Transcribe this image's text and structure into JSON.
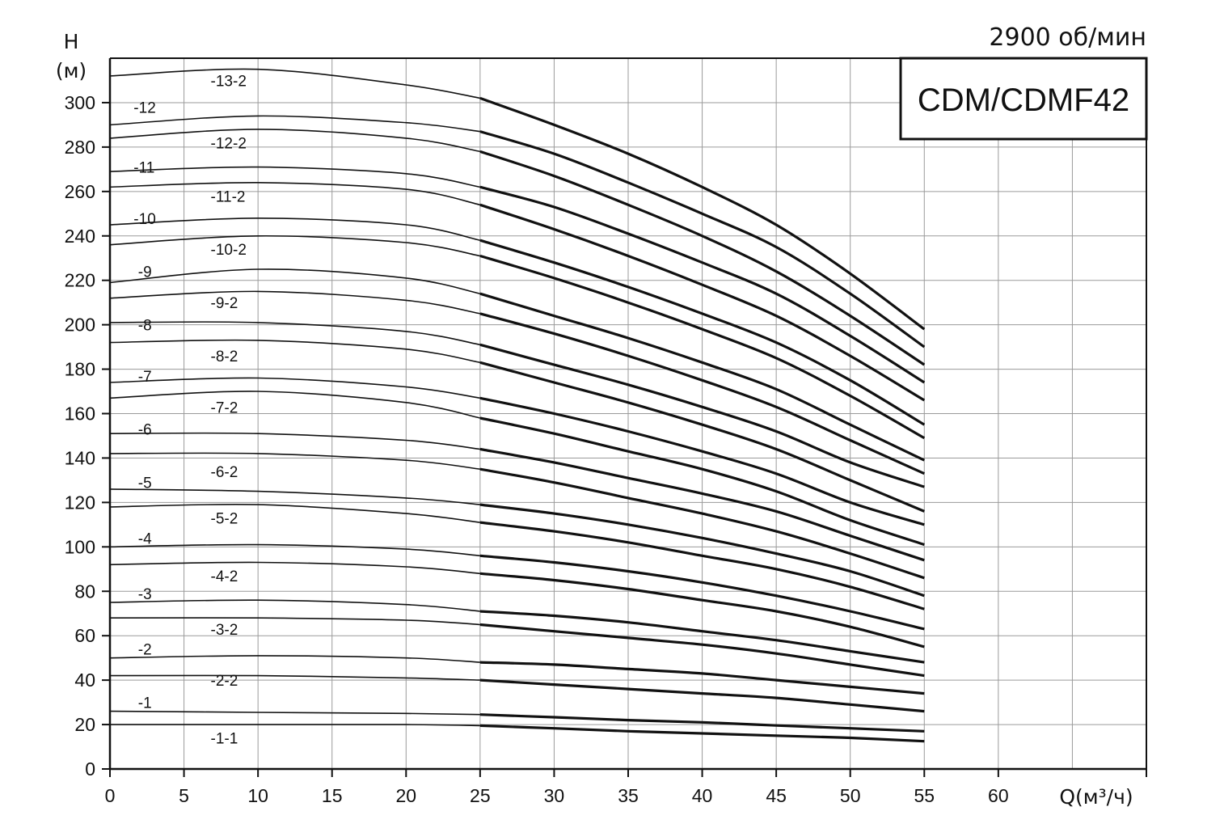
{
  "chart_data": {
    "type": "line",
    "title": "CDM/CDMF42",
    "subtitle": "2900 об/мин",
    "xlabel": "Q(м³/ч)",
    "ylabel_line1": "H",
    "ylabel_line2": "(м)",
    "xlim": [
      0,
      70
    ],
    "ylim": [
      0,
      320
    ],
    "x_ticks": [
      0,
      5,
      10,
      15,
      20,
      25,
      30,
      35,
      40,
      45,
      50,
      55,
      60
    ],
    "y_ticks": [
      0,
      20,
      40,
      60,
      80,
      100,
      120,
      140,
      160,
      180,
      200,
      220,
      240,
      260,
      280,
      300
    ],
    "grid": true,
    "series": [
      {
        "name": "-13-2",
        "x": [
          0,
          10,
          20,
          25,
          30,
          35,
          40,
          45,
          50,
          55
        ],
        "y": [
          312,
          315,
          308,
          302,
          290,
          277,
          262,
          245,
          223,
          198
        ]
      },
      {
        "name": "-12",
        "x": [
          0,
          10,
          20,
          25,
          30,
          35,
          40,
          45,
          50,
          55
        ],
        "y": [
          290,
          294,
          291,
          287,
          277,
          264,
          250,
          235,
          214,
          190
        ]
      },
      {
        "name": "-12-2",
        "x": [
          0,
          10,
          20,
          25,
          30,
          35,
          40,
          45,
          50,
          55
        ],
        "y": [
          284,
          288,
          284,
          278,
          267,
          254,
          240,
          224,
          204,
          182
        ]
      },
      {
        "name": "-11",
        "x": [
          0,
          10,
          20,
          25,
          30,
          35,
          40,
          45,
          50,
          55
        ],
        "y": [
          269,
          271,
          268,
          262,
          253,
          241,
          228,
          214,
          195,
          174
        ]
      },
      {
        "name": "-11-2",
        "x": [
          0,
          10,
          20,
          25,
          30,
          35,
          40,
          45,
          50,
          55
        ],
        "y": [
          262,
          264,
          261,
          254,
          243,
          231,
          218,
          204,
          186,
          166
        ]
      },
      {
        "name": "-10",
        "x": [
          0,
          10,
          20,
          25,
          30,
          35,
          40,
          45,
          50,
          55
        ],
        "y": [
          245,
          248,
          245,
          238,
          228,
          217,
          205,
          192,
          175,
          155
        ]
      },
      {
        "name": "-10-2",
        "x": [
          0,
          10,
          20,
          25,
          30,
          35,
          40,
          45,
          50,
          55
        ],
        "y": [
          236,
          240,
          237,
          231,
          221,
          210,
          198,
          185,
          168,
          149
        ]
      },
      {
        "name": "-9",
        "x": [
          0,
          10,
          20,
          25,
          30,
          35,
          40,
          45,
          50,
          55
        ],
        "y": [
          219,
          225,
          221,
          214,
          204,
          194,
          183,
          171,
          155,
          139
        ]
      },
      {
        "name": "-9-2",
        "x": [
          0,
          10,
          20,
          25,
          30,
          35,
          40,
          45,
          50,
          55
        ],
        "y": [
          212,
          215,
          211,
          205,
          196,
          186,
          175,
          163,
          148,
          133
        ]
      },
      {
        "name": "-8",
        "x": [
          0,
          10,
          20,
          25,
          30,
          35,
          40,
          45,
          50,
          55
        ],
        "y": [
          201,
          201,
          197,
          191,
          182,
          173,
          163,
          152,
          138,
          127
        ]
      },
      {
        "name": "-8-2",
        "x": [
          0,
          10,
          20,
          25,
          30,
          35,
          40,
          45,
          50,
          55
        ],
        "y": [
          192,
          193,
          189,
          183,
          174,
          165,
          155,
          144,
          130,
          116
        ]
      },
      {
        "name": "-7",
        "x": [
          0,
          10,
          20,
          25,
          30,
          35,
          40,
          45,
          50,
          55
        ],
        "y": [
          174,
          176,
          172,
          167,
          160,
          152,
          143,
          133,
          120,
          110
        ]
      },
      {
        "name": "-7-2",
        "x": [
          0,
          10,
          20,
          25,
          30,
          35,
          40,
          45,
          50,
          55
        ],
        "y": [
          167,
          170,
          165,
          158,
          151,
          143,
          135,
          125,
          112,
          101
        ]
      },
      {
        "name": "-6",
        "x": [
          0,
          10,
          20,
          25,
          30,
          35,
          40,
          45,
          50,
          55
        ],
        "y": [
          151,
          151,
          148,
          144,
          138,
          131,
          124,
          116,
          105,
          94
        ]
      },
      {
        "name": "-6-2",
        "x": [
          0,
          10,
          20,
          25,
          30,
          35,
          40,
          45,
          50,
          55
        ],
        "y": [
          142,
          142,
          139,
          135,
          129,
          122,
          115,
          107,
          97,
          86
        ]
      },
      {
        "name": "-5",
        "x": [
          0,
          10,
          20,
          25,
          30,
          35,
          40,
          45,
          50,
          55
        ],
        "y": [
          126,
          125,
          122,
          119,
          115,
          110,
          104,
          97,
          89,
          78
        ]
      },
      {
        "name": "-5-2",
        "x": [
          0,
          10,
          20,
          25,
          30,
          35,
          40,
          45,
          50,
          55
        ],
        "y": [
          118,
          119,
          115,
          111,
          107,
          102,
          96,
          90,
          82,
          72
        ]
      },
      {
        "name": "-4",
        "x": [
          0,
          10,
          20,
          25,
          30,
          35,
          40,
          45,
          50,
          55
        ],
        "y": [
          100,
          101,
          99,
          96,
          93,
          89,
          84,
          78,
          71,
          63
        ]
      },
      {
        "name": "-4-2",
        "x": [
          0,
          10,
          20,
          25,
          30,
          35,
          40,
          45,
          50,
          55
        ],
        "y": [
          92,
          93,
          91,
          88,
          85,
          81,
          76,
          71,
          64,
          55
        ]
      },
      {
        "name": "-3",
        "x": [
          0,
          10,
          20,
          25,
          30,
          35,
          40,
          45,
          50,
          55
        ],
        "y": [
          75,
          76,
          74,
          71,
          69,
          66,
          62,
          58,
          53,
          48
        ]
      },
      {
        "name": "-3-2",
        "x": [
          0,
          10,
          20,
          25,
          30,
          35,
          40,
          45,
          50,
          55
        ],
        "y": [
          68,
          68,
          67,
          65,
          62,
          59,
          56,
          52,
          47,
          42
        ]
      },
      {
        "name": "-2",
        "x": [
          0,
          10,
          20,
          25,
          30,
          35,
          40,
          45,
          50,
          55
        ],
        "y": [
          50,
          51,
          50,
          48,
          47,
          45,
          43,
          40,
          37,
          34
        ]
      },
      {
        "name": "-2-2",
        "x": [
          0,
          10,
          20,
          25,
          30,
          35,
          40,
          45,
          50,
          55
        ],
        "y": [
          42,
          42,
          41,
          40,
          38,
          36,
          34,
          32,
          29,
          26
        ]
      },
      {
        "name": "-1",
        "x": [
          0,
          10,
          20,
          25,
          30,
          35,
          40,
          45,
          50,
          55
        ],
        "y": [
          26,
          25.5,
          25,
          24.5,
          23.3,
          22,
          21,
          19.6,
          18.3,
          17
        ]
      },
      {
        "name": "-1-1",
        "x": [
          0,
          10,
          20,
          25,
          30,
          35,
          40,
          45,
          50,
          55
        ],
        "y": [
          20,
          20,
          20,
          19.5,
          18.3,
          17,
          16,
          15,
          14,
          12.5
        ]
      }
    ],
    "curve_labels": [
      {
        "text": "-13-2",
        "x": 6.8,
        "y": 310
      },
      {
        "text": "-12",
        "x": 1.6,
        "y": 298
      },
      {
        "text": "-12-2",
        "x": 6.8,
        "y": 282
      },
      {
        "text": "-11",
        "x": 1.6,
        "y": 271
      },
      {
        "text": "-11-2",
        "x": 6.8,
        "y": 258
      },
      {
        "text": "-10",
        "x": 1.6,
        "y": 248
      },
      {
        "text": "-10-2",
        "x": 6.8,
        "y": 234
      },
      {
        "text": "-9",
        "x": 1.9,
        "y": 224
      },
      {
        "text": "-9-2",
        "x": 6.8,
        "y": 210
      },
      {
        "text": "-8",
        "x": 1.9,
        "y": 200
      },
      {
        "text": "-8-2",
        "x": 6.8,
        "y": 186
      },
      {
        "text": "-7",
        "x": 1.9,
        "y": 177
      },
      {
        "text": "-7-2",
        "x": 6.8,
        "y": 163
      },
      {
        "text": "-6",
        "x": 1.9,
        "y": 153
      },
      {
        "text": "-6-2",
        "x": 6.8,
        "y": 134
      },
      {
        "text": "-5",
        "x": 1.9,
        "y": 129
      },
      {
        "text": "-5-2",
        "x": 6.8,
        "y": 113
      },
      {
        "text": "-4",
        "x": 1.9,
        "y": 104
      },
      {
        "text": "-4-2",
        "x": 6.8,
        "y": 87
      },
      {
        "text": "-3",
        "x": 1.9,
        "y": 79
      },
      {
        "text": "-3-2",
        "x": 6.8,
        "y": 63
      },
      {
        "text": "-2",
        "x": 1.9,
        "y": 54
      },
      {
        "text": "-2-2",
        "x": 6.8,
        "y": 40
      },
      {
        "text": "-1",
        "x": 1.9,
        "y": 30
      },
      {
        "text": "-1-1",
        "x": 6.8,
        "y": 14
      }
    ]
  }
}
